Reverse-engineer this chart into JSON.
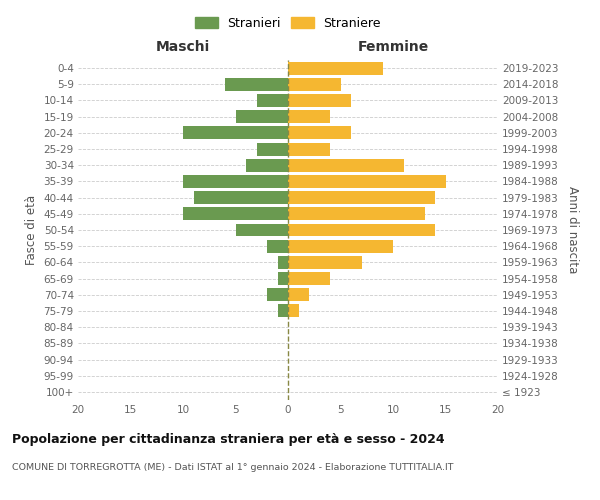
{
  "age_groups": [
    "100+",
    "95-99",
    "90-94",
    "85-89",
    "80-84",
    "75-79",
    "70-74",
    "65-69",
    "60-64",
    "55-59",
    "50-54",
    "45-49",
    "40-44",
    "35-39",
    "30-34",
    "25-29",
    "20-24",
    "15-19",
    "10-14",
    "5-9",
    "0-4"
  ],
  "birth_years": [
    "≤ 1923",
    "1924-1928",
    "1929-1933",
    "1934-1938",
    "1939-1943",
    "1944-1948",
    "1949-1953",
    "1954-1958",
    "1959-1963",
    "1964-1968",
    "1969-1973",
    "1974-1978",
    "1979-1983",
    "1984-1988",
    "1989-1993",
    "1994-1998",
    "1999-2003",
    "2004-2008",
    "2009-2013",
    "2014-2018",
    "2019-2023"
  ],
  "males": [
    0,
    0,
    0,
    0,
    0,
    1,
    2,
    1,
    1,
    2,
    5,
    10,
    9,
    10,
    4,
    3,
    10,
    5,
    3,
    6,
    0
  ],
  "females": [
    0,
    0,
    0,
    0,
    0,
    1,
    2,
    4,
    7,
    10,
    14,
    13,
    14,
    15,
    11,
    4,
    6,
    4,
    6,
    5,
    9
  ],
  "male_color": "#6a9a50",
  "female_color": "#f5b731",
  "background_color": "#ffffff",
  "grid_color": "#cccccc",
  "title": "Popolazione per cittadinanza straniera per età e sesso - 2024",
  "subtitle": "COMUNE DI TORREGROTTA (ME) - Dati ISTAT al 1° gennaio 2024 - Elaborazione TUTTITALIA.IT",
  "xlabel_left": "Maschi",
  "xlabel_right": "Femmine",
  "ylabel_left": "Fasce di età",
  "ylabel_right": "Anni di nascita",
  "legend_male": "Stranieri",
  "legend_female": "Straniere",
  "xlim": 20,
  "bar_height": 0.8
}
